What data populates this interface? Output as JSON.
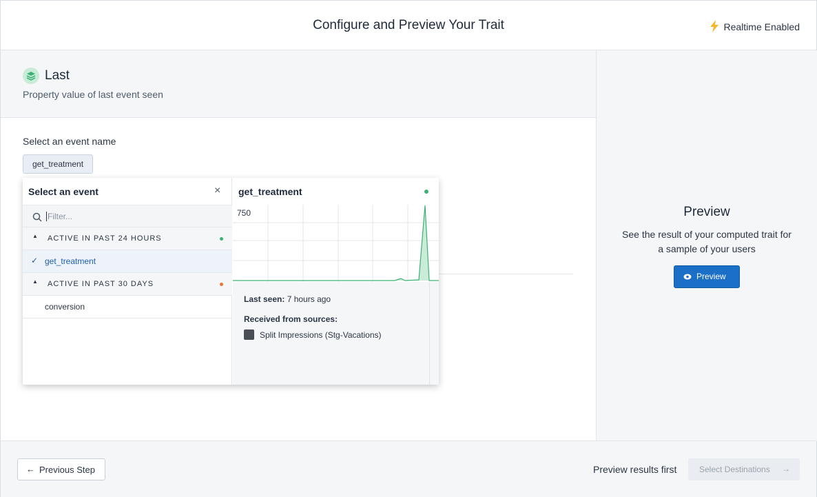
{
  "header": {
    "title": "Configure and Preview Your Trait",
    "status": "Realtime Enabled"
  },
  "trait": {
    "name": "Last",
    "description": "Property value of last event seen"
  },
  "event_select": {
    "label": "Select an event name",
    "selected": "get_treatment"
  },
  "dropdown": {
    "title": "Select an event",
    "filter_placeholder": "Filter...",
    "groups": [
      {
        "label": "ACTIVE IN PAST 24 HOURS",
        "items": [
          "get_treatment"
        ]
      },
      {
        "label": "ACTIVE IN PAST 30 DAYS",
        "items": [
          "conversion"
        ]
      }
    ]
  },
  "detail": {
    "title": "get_treatment",
    "chart_max": 750,
    "last_seen_label": "Last seen:",
    "last_seen": "7 hours ago",
    "sources_label": "Received from sources:",
    "sources": [
      "Split Impressions (Stg-Vacations)"
    ]
  },
  "preview": {
    "title": "Preview",
    "description": "See the result of your computed trait for a sample of your users",
    "button": "Preview"
  },
  "footer": {
    "back": "Previous Step",
    "hint": "Preview results first",
    "next": "Select Destinations"
  }
}
